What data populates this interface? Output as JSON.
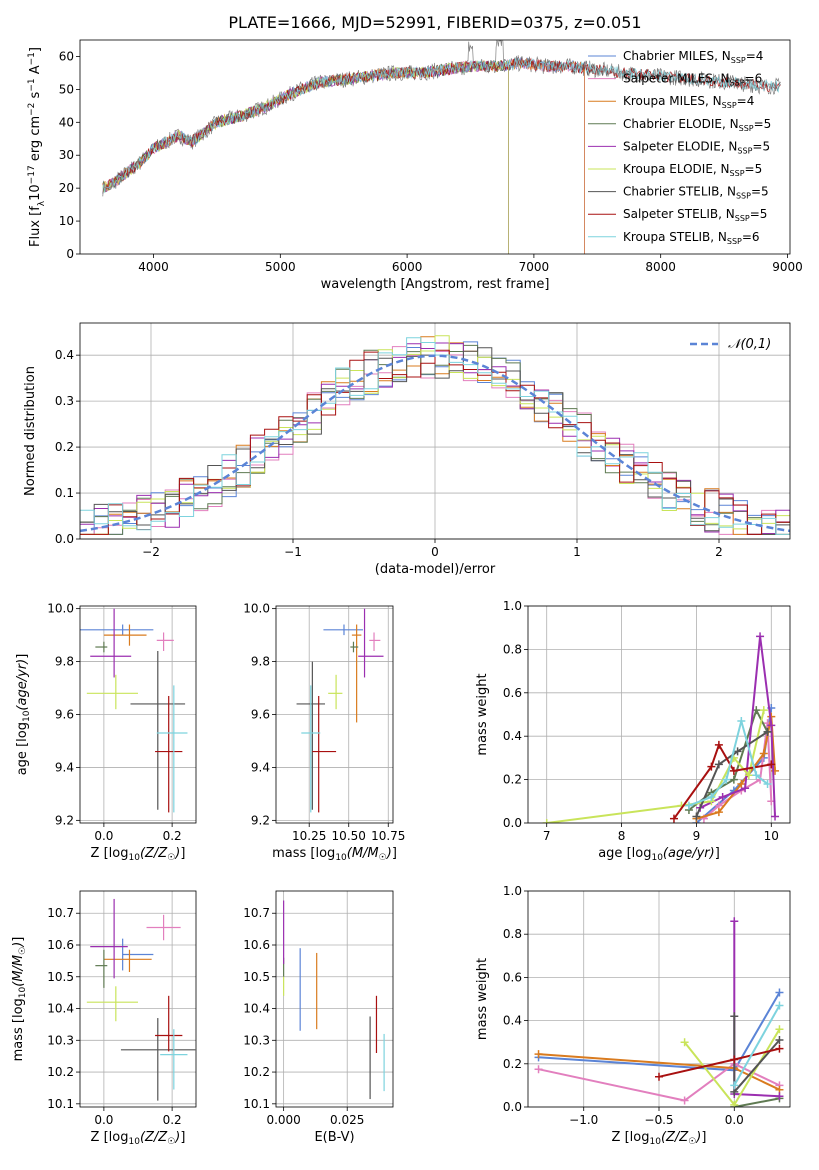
{
  "title": "PLATE=1666, MJD=52991, FIBERID=0375, z=0.051",
  "colors": {
    "Chabrier MILES": "#5b84d6",
    "Salpeter MILES": "#e27fbe",
    "Kroupa MILES": "#d97b1f",
    "Chabrier ELODIE": "#5f7a52",
    "Salpeter ELODIE": "#9b2fb0",
    "Kroupa ELODIE": "#c9e45a",
    "Chabrier STELIB": "#545454",
    "Salpeter STELIB": "#a81010",
    "Kroupa STELIB": "#7dd3de"
  },
  "chart_data": [
    {
      "type": "line",
      "title": "PLATE=1666, MJD=52991, FIBERID=0375, z=0.051",
      "xlabel": "wavelength [Angstrom, rest frame]",
      "ylabel": "Flux [f_λ 10^-17 erg cm^-2 s^-1 A^-1]",
      "xlim": [
        3420,
        9020
      ],
      "ylim": [
        0,
        65
      ],
      "xticks": [
        4000,
        5000,
        6000,
        7000,
        8000,
        9000
      ],
      "yticks": [
        0,
        10,
        20,
        30,
        40,
        50,
        60
      ],
      "legend": "right",
      "legend_entries": [
        {
          "name": "Chabrier MILES",
          "nssp": "4"
        },
        {
          "name": "Salpeter MILES",
          "nssp": "6"
        },
        {
          "name": "Kroupa MILES",
          "nssp": "4"
        },
        {
          "name": "Chabrier ELODIE",
          "nssp": "5"
        },
        {
          "name": "Salpeter ELODIE",
          "nssp": "5"
        },
        {
          "name": "Kroupa ELODIE",
          "nssp": "5"
        },
        {
          "name": "Chabrier STELIB",
          "nssp": "5"
        },
        {
          "name": "Salpeter STELIB",
          "nssp": "5"
        },
        {
          "name": "Kroupa STELIB",
          "nssp": "6"
        }
      ],
      "continuum": {
        "x": [
          3600,
          3700,
          3800,
          3900,
          4000,
          4100,
          4200,
          4300,
          4400,
          4500,
          4700,
          4900,
          5100,
          5300,
          5500,
          5700,
          5900,
          6100,
          6300,
          6500,
          6700,
          6900,
          7100,
          7300,
          7500,
          7700,
          8000,
          8300,
          8600,
          8800
        ],
        "y": [
          20,
          22,
          25,
          28,
          32,
          34,
          36,
          34,
          37,
          40,
          42,
          45,
          49,
          52,
          53,
          54,
          55,
          55,
          56,
          57,
          57,
          58,
          57,
          57,
          56,
          55,
          54,
          53,
          52,
          51
        ]
      },
      "model_ends": {
        "Chabrier MILES": 7400,
        "Salpeter MILES": 7400,
        "Kroupa MILES": 7400,
        "Chabrier ELODIE": 6800,
        "Salpeter ELODIE": 6800,
        "Kroupa ELODIE": 6800,
        "Chabrier STELIB": 8950,
        "Salpeter STELIB": 8950,
        "Kroupa STELIB": 8950
      }
    },
    {
      "type": "bar",
      "xlabel": "(data-model)/error",
      "ylabel": "Normed distribution",
      "xlim": [
        -2.5,
        2.5
      ],
      "ylim": [
        0,
        0.47
      ],
      "xticks": [
        -2,
        -1,
        0,
        1,
        2
      ],
      "yticks": [
        0.0,
        0.1,
        0.2,
        0.3,
        0.4
      ],
      "legend_label": "𝒩(0,1)",
      "legend": "top-right",
      "bin_width": 0.1
    },
    {
      "type": "scatter",
      "xlabel": "Z [log10(Z/Z☉)]",
      "ylabel": "age [log10(age/yr)]",
      "xlim": [
        -0.07,
        0.27
      ],
      "ylim": [
        9.19,
        10.01
      ],
      "xticks": [
        0.0,
        0.2
      ],
      "yticks": [
        9.2,
        9.4,
        9.6,
        9.8,
        10.0
      ],
      "points": [
        {
          "model": "Chabrier MILES",
          "x": 0.055,
          "xerr": [
            0.145,
            0.09
          ],
          "y": 9.92,
          "yerr": [
            0.02,
            0.02
          ]
        },
        {
          "model": "Salpeter MILES",
          "x": 0.175,
          "xerr": [
            0.02,
            0.03
          ],
          "y": 9.88,
          "yerr": [
            0.04,
            0.03
          ]
        },
        {
          "model": "Kroupa MILES",
          "x": 0.075,
          "xerr": [
            0.075,
            0.05
          ],
          "y": 9.9,
          "yerr": [
            0.04,
            0.04
          ]
        },
        {
          "model": "Chabrier ELODIE",
          "x": 0.0,
          "xerr": [
            0.025,
            0.01
          ],
          "y": 9.855,
          "yerr": [
            0.02,
            0.02
          ]
        },
        {
          "model": "Salpeter ELODIE",
          "x": 0.03,
          "xerr": [
            0.07,
            0.05
          ],
          "y": 9.82,
          "yerr": [
            0.08,
            0.18
          ]
        },
        {
          "model": "Kroupa ELODIE",
          "x": 0.035,
          "xerr": [
            0.085,
            0.065
          ],
          "y": 9.68,
          "yerr": [
            0.06,
            0.07
          ]
        },
        {
          "model": "Chabrier STELIB",
          "x": 0.158,
          "xerr": [
            0.08,
            0.08
          ],
          "y": 9.64,
          "yerr": [
            0.4,
            0.2
          ]
        },
        {
          "model": "Salpeter STELIB",
          "x": 0.19,
          "xerr": [
            0.04,
            0.04
          ],
          "y": 9.46,
          "yerr": [
            0.23,
            0.21
          ]
        },
        {
          "model": "Kroupa STELIB",
          "x": 0.205,
          "xerr": [
            0.05,
            0.04
          ],
          "y": 9.53,
          "yerr": [
            0.3,
            0.18
          ]
        }
      ]
    },
    {
      "type": "scatter",
      "xlabel": "mass [log10(M/M☉)]",
      "xlim": [
        10.04,
        10.78
      ],
      "ylim": [
        9.19,
        10.01
      ],
      "xticks": [
        10.25,
        10.5,
        10.75
      ],
      "yticks": [
        9.2,
        9.4,
        9.6,
        9.8,
        10.0
      ],
      "points": [
        {
          "model": "Chabrier MILES",
          "x": 10.47,
          "xerr": [
            0.13,
            0.12
          ],
          "y": 9.92,
          "yerr": [
            0.02,
            0.02
          ]
        },
        {
          "model": "Salpeter MILES",
          "x": 10.66,
          "xerr": [
            0.03,
            0.04
          ],
          "y": 9.88,
          "yerr": [
            0.04,
            0.03
          ]
        },
        {
          "model": "Kroupa MILES",
          "x": 10.55,
          "xerr": [
            0.03,
            0.03
          ],
          "y": 9.9,
          "yerr": [
            0.33,
            0.04
          ]
        },
        {
          "model": "Chabrier ELODIE",
          "x": 10.53,
          "xerr": [
            0.02,
            0.03
          ],
          "y": 9.855,
          "yerr": [
            0.02,
            0.02
          ]
        },
        {
          "model": "Salpeter ELODIE",
          "x": 10.6,
          "xerr": [
            0.04,
            0.12
          ],
          "y": 9.82,
          "yerr": [
            0.08,
            0.18
          ]
        },
        {
          "model": "Kroupa ELODIE",
          "x": 10.42,
          "xerr": [
            0.05,
            0.04
          ],
          "y": 9.68,
          "yerr": [
            0.06,
            0.07
          ]
        },
        {
          "model": "Chabrier STELIB",
          "x": 10.27,
          "xerr": [
            0.1,
            0.08
          ],
          "y": 9.64,
          "yerr": [
            0.4,
            0.16
          ]
        },
        {
          "model": "Salpeter STELIB",
          "x": 10.31,
          "xerr": [
            0.04,
            0.11
          ],
          "y": 9.46,
          "yerr": [
            0.23,
            0.21
          ]
        },
        {
          "model": "Kroupa STELIB",
          "x": 10.26,
          "xerr": [
            0.06,
            0.06
          ],
          "y": 9.53,
          "yerr": [
            0.3,
            0.18
          ]
        }
      ]
    },
    {
      "type": "line",
      "xlabel": "age [log10(age/yr)]",
      "ylabel": "mass weight",
      "xlim": [
        6.75,
        10.25
      ],
      "ylim": [
        0,
        1
      ],
      "xticks": [
        7,
        8,
        9,
        10
      ],
      "yticks": [
        0.0,
        0.2,
        0.4,
        0.6,
        0.8,
        1.0
      ],
      "series": [
        {
          "model": "Chabrier MILES",
          "x": [
            9.0,
            9.5,
            9.9,
            10.0
          ],
          "y": [
            0.0,
            0.15,
            0.3,
            0.53
          ]
        },
        {
          "model": "Salpeter MILES",
          "x": [
            9.1,
            9.3,
            9.6,
            9.85,
            9.95,
            10.0
          ],
          "y": [
            0.02,
            0.08,
            0.15,
            0.2,
            0.46,
            0.1
          ]
        },
        {
          "model": "Kroupa MILES",
          "x": [
            9.0,
            9.3,
            9.6,
            9.9,
            10.0,
            10.05
          ],
          "y": [
            0.02,
            0.05,
            0.18,
            0.32,
            0.49,
            0.24
          ]
        },
        {
          "model": "Chabrier ELODIE",
          "x": [
            8.9,
            9.2,
            9.5,
            9.8,
            9.95
          ],
          "y": [
            0.06,
            0.14,
            0.2,
            0.52,
            0.42
          ]
        },
        {
          "model": "Salpeter ELODIE",
          "x": [
            9.05,
            9.35,
            9.65,
            9.85,
            10.0,
            10.05
          ],
          "y": [
            0.07,
            0.12,
            0.16,
            0.86,
            0.45,
            0.03
          ]
        },
        {
          "model": "Kroupa ELODIE",
          "x": [
            7.0,
            8.8,
            9.2,
            9.5,
            9.7,
            9.9
          ],
          "y": [
            0.0,
            0.08,
            0.1,
            0.3,
            0.22,
            0.52
          ]
        },
        {
          "model": "Chabrier STELIB",
          "x": [
            9.0,
            9.3,
            9.55,
            9.95
          ],
          "y": [
            0.03,
            0.27,
            0.33,
            0.42
          ]
        },
        {
          "model": "Salpeter STELIB",
          "x": [
            8.7,
            9.2,
            9.3,
            9.5,
            10.0
          ],
          "y": [
            0.02,
            0.26,
            0.36,
            0.24,
            0.27
          ]
        },
        {
          "model": "Kroupa STELIB",
          "x": [
            8.9,
            9.2,
            9.4,
            9.6,
            9.8,
            9.95
          ],
          "y": [
            0.08,
            0.12,
            0.2,
            0.47,
            0.22,
            0.18
          ]
        }
      ]
    },
    {
      "type": "scatter",
      "xlabel": "Z [log10(Z/Z☉)]",
      "ylabel": "mass [log10(M/M☉)]",
      "xlim": [
        -0.07,
        0.27
      ],
      "ylim": [
        10.09,
        10.77
      ],
      "xticks": [
        0.0,
        0.2
      ],
      "yticks": [
        10.1,
        10.2,
        10.3,
        10.4,
        10.5,
        10.6,
        10.7
      ],
      "points": [
        {
          "model": "Chabrier MILES",
          "x": 0.055,
          "xerr": [
            0.0,
            0.09
          ],
          "y": 10.57,
          "yerr": [
            0.05,
            0.05
          ]
        },
        {
          "model": "Salpeter MILES",
          "x": 0.175,
          "xerr": [
            0.05,
            0.05
          ],
          "y": 10.655,
          "yerr": [
            0.04,
            0.04
          ]
        },
        {
          "model": "Kroupa MILES",
          "x": 0.075,
          "xerr": [
            0.075,
            0.065
          ],
          "y": 10.555,
          "yerr": [
            0.04,
            0.03
          ]
        },
        {
          "model": "Chabrier ELODIE",
          "x": 0.0,
          "xerr": [
            0.025,
            0.01
          ],
          "y": 10.535,
          "yerr": [
            0.07,
            0.05
          ]
        },
        {
          "model": "Salpeter ELODIE",
          "x": 0.03,
          "xerr": [
            0.07,
            0.04
          ],
          "y": 10.595,
          "yerr": [
            0.1,
            0.15
          ]
        },
        {
          "model": "Kroupa ELODIE",
          "x": 0.035,
          "xerr": [
            0.085,
            0.065
          ],
          "y": 10.42,
          "yerr": [
            0.06,
            0.05
          ]
        },
        {
          "model": "Chabrier STELIB",
          "x": 0.158,
          "xerr": [
            0.108,
            0.11
          ],
          "y": 10.27,
          "yerr": [
            0.16,
            0.1
          ]
        },
        {
          "model": "Salpeter STELIB",
          "x": 0.19,
          "xerr": [
            0.04,
            0.04
          ],
          "y": 10.315,
          "yerr": [
            0.05,
            0.125
          ]
        },
        {
          "model": "Kroupa STELIB",
          "x": 0.205,
          "xerr": [
            0.04,
            0.04
          ],
          "y": 10.255,
          "yerr": [
            0.11,
            0.08
          ]
        }
      ]
    },
    {
      "type": "scatter",
      "xlabel": "E(B-V)",
      "xlim": [
        -0.003,
        0.043
      ],
      "ylim": [
        10.09,
        10.77
      ],
      "xticks": [
        0.0,
        0.025
      ],
      "yticks": [
        10.1,
        10.2,
        10.3,
        10.4,
        10.5,
        10.6,
        10.7
      ],
      "points": [
        {
          "model": "Chabrier MILES",
          "x": 0.0065,
          "y": 10.46,
          "yerr": [
            0.13,
            0.13
          ]
        },
        {
          "model": "Salpeter MILES",
          "x": 0.0,
          "y": 10.655,
          "yerr": [
            0.0,
            0.0
          ]
        },
        {
          "model": "Kroupa MILES",
          "x": 0.013,
          "y": 10.455,
          "yerr": [
            0.12,
            0.12
          ]
        },
        {
          "model": "Chabrier ELODIE",
          "x": 0.0,
          "y": 10.53,
          "yerr": [
            0.03,
            0.03
          ]
        },
        {
          "model": "Salpeter ELODIE",
          "x": 0.0,
          "y": 10.64,
          "yerr": [
            0.1,
            0.1
          ]
        },
        {
          "model": "Kroupa ELODIE",
          "x": 0.0,
          "y": 10.47,
          "yerr": [
            0.03,
            0.03
          ]
        },
        {
          "model": "Chabrier STELIB",
          "x": 0.034,
          "y": 10.245,
          "yerr": [
            0.13,
            0.13
          ]
        },
        {
          "model": "Salpeter STELIB",
          "x": 0.0365,
          "y": 10.35,
          "yerr": [
            0.09,
            0.09
          ]
        },
        {
          "model": "Kroupa STELIB",
          "x": 0.0395,
          "y": 10.23,
          "yerr": [
            0.09,
            0.09
          ]
        }
      ]
    },
    {
      "type": "line",
      "xlabel": "Z [log10(Z/Z☉)]",
      "ylabel": "mass weight",
      "xlim": [
        -1.37,
        0.37
      ],
      "ylim": [
        0,
        1
      ],
      "xticks": [
        -1.0,
        -0.5,
        0.0
      ],
      "yticks": [
        0.0,
        0.2,
        0.4,
        0.6,
        0.8,
        1.0
      ],
      "series": [
        {
          "model": "Chabrier MILES",
          "x": [
            -1.3,
            0.0,
            0.3
          ],
          "y": [
            0.23,
            0.17,
            0.53
          ]
        },
        {
          "model": "Salpeter MILES",
          "x": [
            -1.3,
            -0.33,
            0.0,
            0.3
          ],
          "y": [
            0.175,
            0.03,
            0.2,
            0.1
          ]
        },
        {
          "model": "Kroupa MILES",
          "x": [
            -1.3,
            0.0,
            0.3
          ],
          "y": [
            0.245,
            0.18,
            0.08
          ]
        },
        {
          "model": "Chabrier ELODIE",
          "x": [
            0.0,
            0.3
          ],
          "y": [
            0.0,
            0.04
          ]
        },
        {
          "model": "Salpeter ELODIE",
          "x": [
            0.0,
            0.0,
            0.3
          ],
          "y": [
            0.86,
            0.06,
            0.05
          ]
        },
        {
          "model": "Kroupa ELODIE",
          "x": [
            -0.33,
            0.0,
            0.3
          ],
          "y": [
            0.3,
            0.01,
            0.36
          ]
        },
        {
          "model": "Chabrier STELIB",
          "x": [
            0.0,
            0.0,
            0.3
          ],
          "y": [
            0.42,
            0.07,
            0.31
          ]
        },
        {
          "model": "Salpeter STELIB",
          "x": [
            -0.5,
            0.0,
            0.3
          ],
          "y": [
            0.14,
            0.22,
            0.27
          ]
        },
        {
          "model": "Kroupa STELIB",
          "x": [
            0.0,
            0.3
          ],
          "y": [
            0.1,
            0.47
          ]
        }
      ]
    }
  ]
}
